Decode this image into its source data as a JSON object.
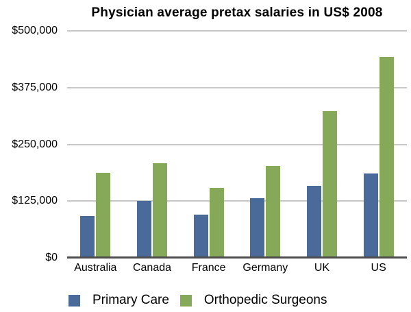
{
  "title": "Physician average pretax salaries in US$ 2008",
  "colors": {
    "primary_care": "#4a6b9a",
    "orthopedic_surgeons": "#85a958",
    "gridline": "#c7c7c7",
    "axis_line": "#4d4d4d",
    "background": "#ffffff",
    "text": "#000000"
  },
  "chart_data": {
    "type": "bar",
    "title": "Physician average pretax salaries in US$ 2008",
    "categories": [
      "Australia",
      "Canada",
      "France",
      "Germany",
      "UK",
      "US"
    ],
    "series": [
      {
        "name": "Primary Care",
        "color": "#4a6b9a",
        "values": [
          92000,
          125000,
          95000,
          131000,
          159000,
          186000
        ]
      },
      {
        "name": "Orthopedic Surgeons",
        "color": "#85a958",
        "values": [
          187000,
          208000,
          154000,
          202000,
          324000,
          442000
        ]
      }
    ],
    "xlabel": "",
    "ylabel": "",
    "ylim": [
      0,
      500000
    ],
    "ytick_values": [
      0,
      125000,
      250000,
      375000,
      500000
    ],
    "ytick_labels": [
      "$0",
      "$125,000",
      "$250,000",
      "$375,000",
      "$500,000"
    ],
    "grid": true,
    "legend_position": "bottom"
  }
}
